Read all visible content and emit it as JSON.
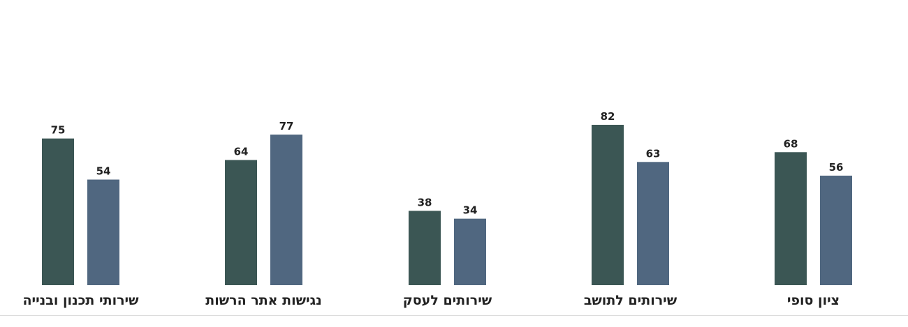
{
  "chart_data": {
    "type": "bar",
    "categories": [
      "שירותי תכנון ובנייה",
      "נגישות אתר הרשות",
      "שירותים לעסק",
      "שירותים לתושב",
      "ציון סופי"
    ],
    "series": [
      {
        "values": [
          75,
          64,
          38,
          82,
          68
        ],
        "color": "#3b5654"
      },
      {
        "values": [
          54,
          77,
          34,
          63,
          56
        ],
        "color": "#506780"
      }
    ],
    "ylim": [
      0,
      100
    ],
    "grid": false,
    "legend": "none",
    "title": "",
    "xlabel": "",
    "ylabel": ""
  }
}
